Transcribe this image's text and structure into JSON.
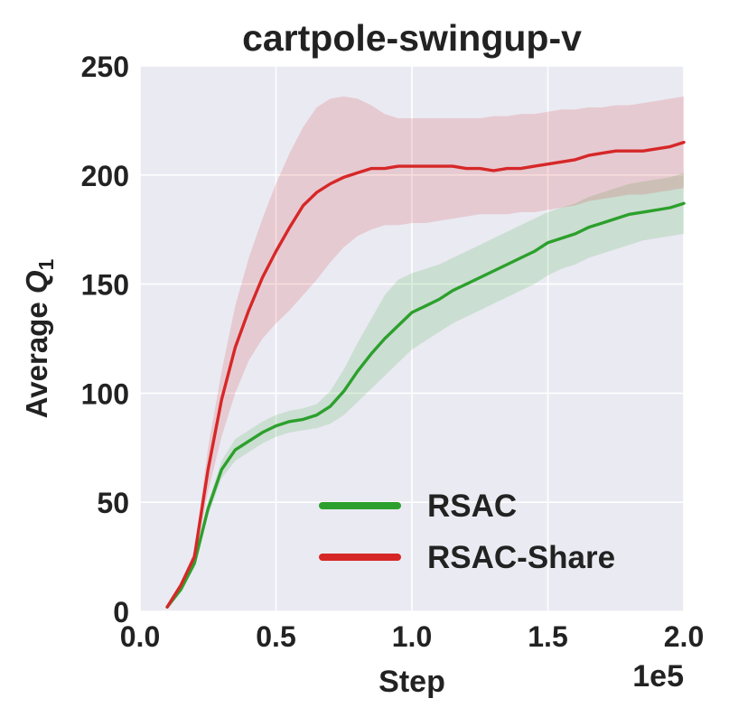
{
  "chart_data": {
    "type": "line",
    "title": "cartpole-swingup-v",
    "xlabel": "Step",
    "x_scale_label": "1e5",
    "ylabel_main": "Average ",
    "ylabel_var": "Q",
    "ylabel_sub": "1",
    "xlim": [
      0.0,
      2.0
    ],
    "ylim": [
      0,
      250
    ],
    "x_ticks": [
      0.0,
      0.5,
      1.0,
      1.5,
      2.0
    ],
    "x_tick_labels": [
      "0.0",
      "0.5",
      "1.0",
      "1.5",
      "2.0"
    ],
    "y_ticks": [
      0,
      50,
      100,
      150,
      200,
      250
    ],
    "y_tick_labels": [
      "0",
      "50",
      "100",
      "150",
      "200",
      "250"
    ],
    "grid": true,
    "background": "#eaeaf2",
    "legend_position": "lower-right",
    "series": [
      {
        "name": "RSAC",
        "color": "#2ca02c",
        "x": [
          0.1,
          0.15,
          0.2,
          0.25,
          0.3,
          0.35,
          0.4,
          0.45,
          0.5,
          0.55,
          0.6,
          0.65,
          0.7,
          0.75,
          0.8,
          0.85,
          0.9,
          0.95,
          1.0,
          1.05,
          1.1,
          1.15,
          1.2,
          1.25,
          1.3,
          1.35,
          1.4,
          1.45,
          1.5,
          1.55,
          1.6,
          1.65,
          1.7,
          1.75,
          1.8,
          1.85,
          1.9,
          1.95,
          2.0
        ],
        "y": [
          2,
          10,
          22,
          47,
          65,
          74,
          78,
          82,
          85,
          87,
          88,
          90,
          94,
          101,
          110,
          118,
          125,
          131,
          137,
          140,
          143,
          147,
          150,
          153,
          156,
          159,
          162,
          165,
          169,
          171,
          173,
          176,
          178,
          180,
          182,
          183,
          184,
          185,
          187
        ],
        "lower": [
          2,
          9,
          20,
          44,
          61,
          69,
          73,
          77,
          80,
          82,
          83,
          84,
          86,
          90,
          96,
          102,
          108,
          114,
          120,
          124,
          128,
          132,
          135,
          138,
          141,
          144,
          147,
          150,
          154,
          157,
          159,
          162,
          164,
          166,
          168,
          170,
          171,
          172,
          173
        ],
        "upper": [
          2,
          11,
          24,
          50,
          69,
          79,
          83,
          87,
          90,
          92,
          93,
          95,
          101,
          111,
          123,
          134,
          145,
          152,
          155,
          157,
          159,
          162,
          165,
          168,
          171,
          174,
          177,
          180,
          183,
          185,
          187,
          190,
          192,
          194,
          196,
          197,
          198,
          199,
          201
        ]
      },
      {
        "name": "RSAC-Share",
        "color": "#d62728",
        "x": [
          0.1,
          0.15,
          0.2,
          0.25,
          0.3,
          0.35,
          0.4,
          0.45,
          0.5,
          0.55,
          0.6,
          0.65,
          0.7,
          0.75,
          0.8,
          0.85,
          0.9,
          0.95,
          1.0,
          1.05,
          1.1,
          1.15,
          1.2,
          1.25,
          1.3,
          1.35,
          1.4,
          1.45,
          1.5,
          1.55,
          1.6,
          1.65,
          1.7,
          1.75,
          1.8,
          1.85,
          1.9,
          1.95,
          2.0
        ],
        "y": [
          2,
          12,
          25,
          65,
          97,
          121,
          138,
          153,
          165,
          176,
          186,
          192,
          196,
          199,
          201,
          203,
          203,
          204,
          204,
          204,
          204,
          204,
          203,
          203,
          202,
          203,
          203,
          204,
          205,
          206,
          207,
          209,
          210,
          211,
          211,
          211,
          212,
          213,
          215
        ],
        "lower": [
          2,
          11,
          22,
          55,
          80,
          100,
          115,
          125,
          132,
          138,
          145,
          152,
          160,
          167,
          172,
          175,
          177,
          177,
          178,
          178,
          179,
          180,
          181,
          182,
          182,
          182,
          183,
          183,
          184,
          185,
          186,
          188,
          189,
          190,
          191,
          191,
          192,
          193,
          194
        ],
        "upper": [
          2,
          13,
          28,
          75,
          110,
          140,
          162,
          180,
          196,
          210,
          222,
          231,
          235,
          236,
          235,
          232,
          228,
          226,
          226,
          226,
          226,
          226,
          226,
          226,
          227,
          227,
          228,
          228,
          229,
          230,
          230,
          231,
          231,
          232,
          232,
          233,
          234,
          235,
          236
        ]
      }
    ]
  }
}
